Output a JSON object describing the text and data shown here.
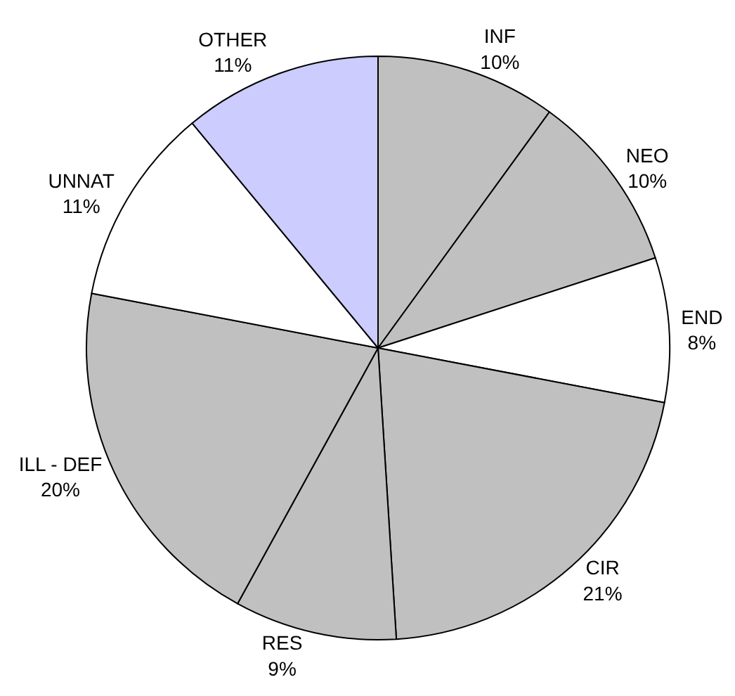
{
  "chart_data": {
    "type": "pie",
    "categories": [
      "INF",
      "NEO",
      "END",
      "CIR",
      "RES",
      "ILL - DEF",
      "UNNAT",
      "OTHER"
    ],
    "values": [
      10,
      10,
      8,
      21,
      9,
      20,
      11,
      11
    ],
    "value_labels": [
      "10%",
      "10%",
      "8%",
      "21%",
      "9%",
      "20%",
      "11%",
      "11%"
    ],
    "colors": [
      "#c0c0c0",
      "#c0c0c0",
      "#ffffff",
      "#c0c0c0",
      "#c0c0c0",
      "#c0c0c0",
      "#ffffff",
      "#ccccff"
    ],
    "legend": false
  }
}
